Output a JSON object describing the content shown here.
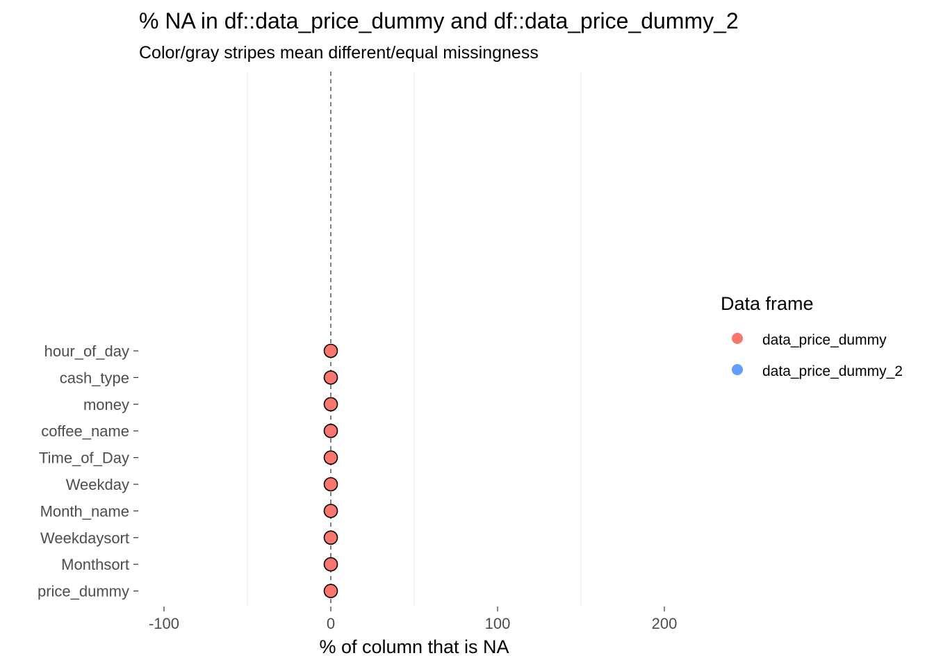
{
  "chart_data": {
    "type": "scatter",
    "title": "% NA in df::data_price_dummy and df::data_price_dummy_2",
    "subtitle": "Color/gray stripes mean different/equal missingness",
    "xlabel": "% of column that is NA",
    "ylabel": "",
    "xlim": [
      -150,
      200
    ],
    "xticks": [
      -100,
      0,
      100,
      200
    ],
    "xtick_labels": [
      "-100",
      "0",
      "100",
      "200"
    ],
    "reference_line": 0,
    "grid": "vertical-minor",
    "categories": [
      "hour_of_day",
      "cash_type",
      "money",
      "coffee_name",
      "Time_of_Day",
      "Weekday",
      "Month_name",
      "Weekdaysort",
      "Monthsort",
      "price_dummy"
    ],
    "series": [
      {
        "name": "data_price_dummy",
        "color": "#F8766D",
        "values": [
          0,
          0,
          0,
          0,
          0,
          0,
          0,
          0,
          0,
          0
        ]
      },
      {
        "name": "data_price_dummy_2",
        "color": "#619CFF",
        "values": []
      }
    ],
    "legend": {
      "title": "Data frame",
      "position": "right",
      "entries": [
        "data_price_dummy",
        "data_price_dummy_2"
      ]
    }
  }
}
